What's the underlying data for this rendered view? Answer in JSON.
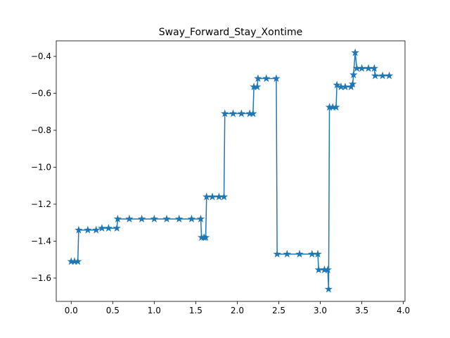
{
  "chart_data": {
    "type": "line",
    "title": "Sway_Forward_Stay_Xontime",
    "x": [
      0.0,
      0.04,
      0.08,
      0.09,
      0.2,
      0.3,
      0.37,
      0.45,
      0.55,
      0.56,
      0.7,
      0.85,
      1.0,
      1.15,
      1.3,
      1.45,
      1.56,
      1.57,
      1.6,
      1.62,
      1.63,
      1.7,
      1.78,
      1.84,
      1.85,
      1.95,
      2.05,
      2.15,
      2.19,
      2.2,
      2.24,
      2.25,
      2.35,
      2.47,
      2.48,
      2.6,
      2.75,
      2.9,
      2.97,
      2.98,
      3.05,
      3.09,
      3.1,
      3.11,
      3.15,
      3.19,
      3.2,
      3.25,
      3.3,
      3.37,
      3.39,
      3.4,
      3.42,
      3.44,
      3.5,
      3.58,
      3.65,
      3.66,
      3.75,
      3.83
    ],
    "series": [
      {
        "color": "#1f77b4",
        "marker": "star",
        "values": [
          -1.51,
          -1.51,
          -1.51,
          -1.34,
          -1.34,
          -1.34,
          -1.33,
          -1.33,
          -1.33,
          -1.28,
          -1.28,
          -1.28,
          -1.28,
          -1.28,
          -1.28,
          -1.28,
          -1.28,
          -1.38,
          -1.38,
          -1.38,
          -1.16,
          -1.16,
          -1.16,
          -1.16,
          -0.71,
          -0.71,
          -0.71,
          -0.71,
          -0.71,
          -0.565,
          -0.565,
          -0.52,
          -0.52,
          -0.52,
          -1.47,
          -1.47,
          -1.47,
          -1.47,
          -1.47,
          -1.555,
          -1.555,
          -1.555,
          -1.66,
          -0.675,
          -0.675,
          -0.675,
          -0.555,
          -0.565,
          -0.565,
          -0.565,
          -0.55,
          -0.5,
          -0.38,
          -0.465,
          -0.465,
          -0.465,
          -0.465,
          -0.505,
          -0.505,
          -0.505
        ]
      }
    ],
    "xlim": [
      -0.18,
      4.02
    ],
    "ylim": [
      -1.726,
      -0.316
    ],
    "xticks": [
      {
        "value": 0,
        "label": "0.0"
      },
      {
        "value": 0.5,
        "label": "0.5"
      },
      {
        "value": 1,
        "label": "1.0"
      },
      {
        "value": 1.5,
        "label": "1.5"
      },
      {
        "value": 2,
        "label": "2.0"
      },
      {
        "value": 2.5,
        "label": "2.5"
      },
      {
        "value": 3,
        "label": "3.0"
      },
      {
        "value": 3.5,
        "label": "3.5"
      },
      {
        "value": 4,
        "label": "4.0"
      }
    ],
    "yticks": [
      {
        "value": -1.6,
        "label": "−1.6"
      },
      {
        "value": -1.4,
        "label": "−1.4"
      },
      {
        "value": -1.2,
        "label": "−1.2"
      },
      {
        "value": -1.0,
        "label": "−1.0"
      },
      {
        "value": -0.8,
        "label": "−0.8"
      },
      {
        "value": -0.6,
        "label": "−0.6"
      },
      {
        "value": -0.4,
        "label": "−0.4"
      }
    ],
    "grid": false
  }
}
